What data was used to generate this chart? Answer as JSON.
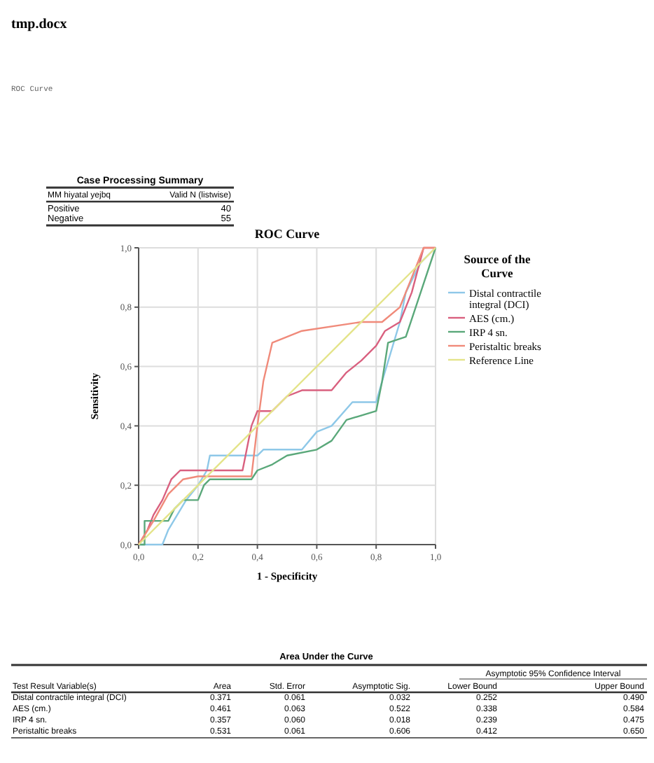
{
  "chart_data": {
    "type": "line",
    "title": "ROC Curve",
    "xlabel": "1 - Specificity",
    "ylabel": "Sensitivity",
    "legend_title": "Source of the Curve",
    "legend": "right",
    "grid": true,
    "line_style": "solid",
    "xlim": [
      0,
      1
    ],
    "ylim": [
      0,
      1
    ],
    "xticks": [
      {
        "value": 0,
        "label": "0,0"
      },
      {
        "value": 0.2,
        "label": "0,2"
      },
      {
        "value": 0.4,
        "label": "0,4"
      },
      {
        "value": 0.6,
        "label": "0,6"
      },
      {
        "value": 0.8,
        "label": "0,8"
      },
      {
        "value": 1,
        "label": "1,0"
      }
    ],
    "yticks": [
      {
        "value": 0,
        "label": "0,0"
      },
      {
        "value": 0.2,
        "label": "0,2"
      },
      {
        "value": 0.4,
        "label": "0,4"
      },
      {
        "value": 0.6,
        "label": "0,6"
      },
      {
        "value": 0.8,
        "label": "0,8"
      },
      {
        "value": 1,
        "label": "1,0"
      }
    ],
    "series": [
      {
        "name": "Distal contractile integral (DCI)",
        "color": "#8ec8e8",
        "x": [
          0,
          0.08,
          0.1,
          0.13,
          0.16,
          0.2,
          0.23,
          0.24,
          0.4,
          0.42,
          0.55,
          0.6,
          0.65,
          0.72,
          0.8,
          0.82,
          0.85,
          0.88,
          0.9,
          0.95,
          1
        ],
        "values": [
          0,
          0,
          0.05,
          0.1,
          0.15,
          0.2,
          0.25,
          0.3,
          0.3,
          0.32,
          0.32,
          0.38,
          0.4,
          0.48,
          0.48,
          0.55,
          0.65,
          0.75,
          0.85,
          0.95,
          1
        ]
      },
      {
        "name": "AES (cm.)",
        "color": "#d9607f",
        "x": [
          0,
          0.03,
          0.05,
          0.08,
          0.11,
          0.14,
          0.35,
          0.37,
          0.38,
          0.4,
          0.45,
          0.5,
          0.55,
          0.65,
          0.7,
          0.75,
          0.8,
          0.83,
          0.88,
          0.92,
          0.96,
          1
        ],
        "values": [
          0,
          0.05,
          0.1,
          0.15,
          0.22,
          0.25,
          0.25,
          0.35,
          0.4,
          0.45,
          0.45,
          0.5,
          0.52,
          0.52,
          0.58,
          0.62,
          0.67,
          0.72,
          0.75,
          0.85,
          1,
          1
        ]
      },
      {
        "name": "IRP 4 sn.",
        "color": "#5aa87a",
        "x": [
          0,
          0.02,
          0.02,
          0.1,
          0.12,
          0.15,
          0.2,
          0.22,
          0.24,
          0.38,
          0.4,
          0.45,
          0.5,
          0.6,
          0.65,
          0.7,
          0.8,
          0.82,
          0.84,
          0.9,
          0.95,
          1
        ],
        "values": [
          0,
          0,
          0.08,
          0.08,
          0.12,
          0.15,
          0.15,
          0.2,
          0.22,
          0.22,
          0.25,
          0.27,
          0.3,
          0.32,
          0.35,
          0.42,
          0.45,
          0.55,
          0.68,
          0.7,
          0.85,
          1
        ]
      },
      {
        "name": "Peristaltic breaks",
        "color": "#f08a7a",
        "x": [
          0,
          0.05,
          0.1,
          0.15,
          0.2,
          0.38,
          0.4,
          0.42,
          0.45,
          0.5,
          0.55,
          0.75,
          0.82,
          0.88,
          0.92,
          0.96,
          1
        ],
        "values": [
          0,
          0.08,
          0.17,
          0.22,
          0.23,
          0.23,
          0.4,
          0.55,
          0.68,
          0.7,
          0.72,
          0.75,
          0.75,
          0.8,
          0.9,
          1,
          1
        ]
      },
      {
        "name": "Reference Line",
        "color": "#e4e48a",
        "x": [
          0,
          1
        ],
        "values": [
          0,
          1
        ]
      }
    ],
    "annotations": [
      "tmp.docx",
      "ROC Curve",
      "Case Processing Summary",
      "MM hiyatal yejbq",
      "Valid N (listwise)",
      "Positive",
      "40",
      "Negative",
      "55",
      "Area Under the Curve",
      "Asymptotic 95% Confidence Interval",
      "Test Result Variable(s)",
      "Area",
      "Std. Error",
      "Asymptotic Sig.",
      "Lower Bound",
      "Upper Bound",
      "Distal contractile integral (DCI)",
      "0.371",
      "0.061",
      "0.032",
      "0.252",
      "0.490",
      "AES (cm.)",
      "0.461",
      "0.063",
      "0.522",
      "0.338",
      "0.584",
      "IRP 4 sn.",
      "0.357",
      "0.060",
      "0.018",
      "0.239",
      "0.475",
      "Peristaltic breaks",
      "0.531",
      "0.061",
      "0.606",
      "0.412",
      "0.650"
    ]
  }
}
